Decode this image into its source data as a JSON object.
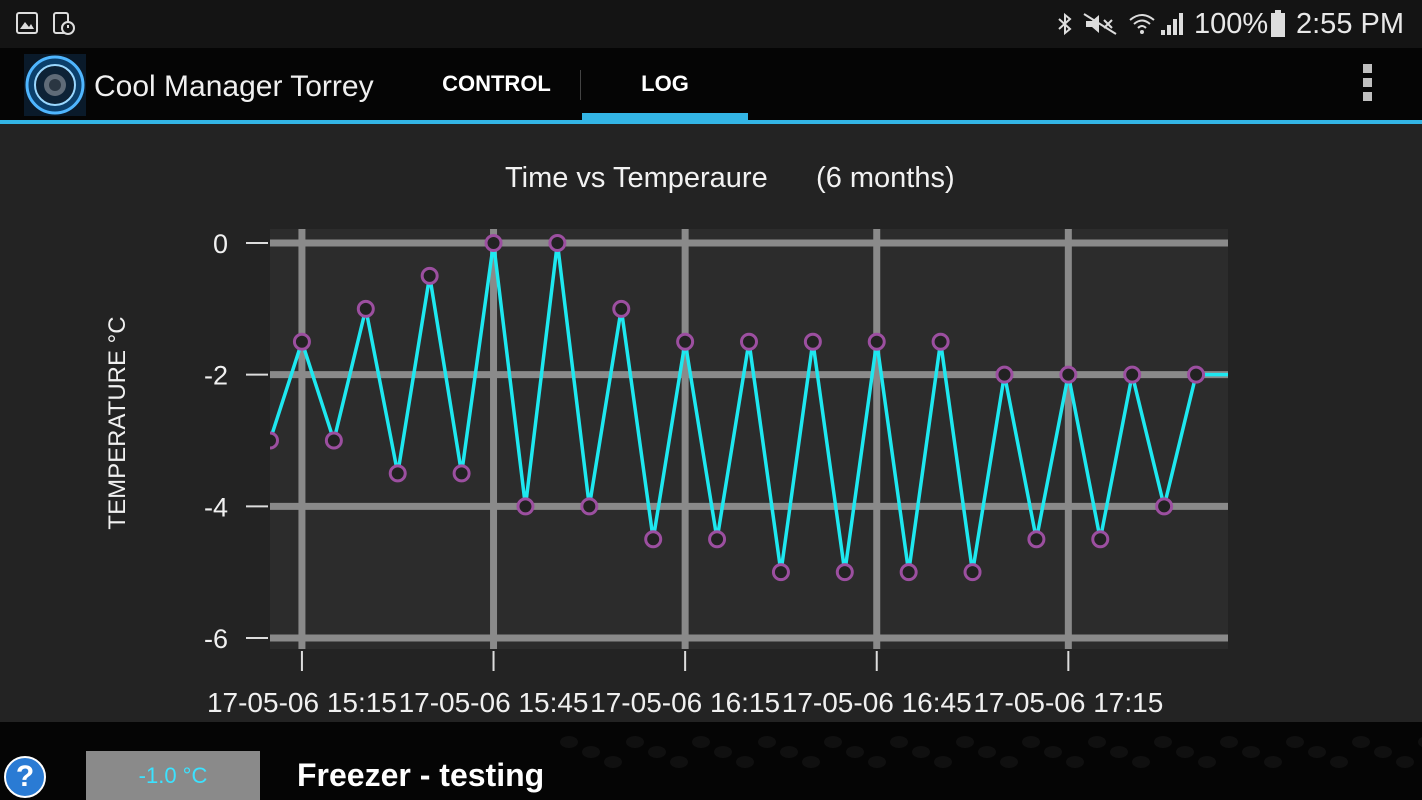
{
  "status_bar": {
    "left_icons": [
      "gallery-icon",
      "clock-file-icon"
    ],
    "right_icons": [
      "bluetooth-icon",
      "mute-icon",
      "wifi-icon",
      "signal-icon",
      "battery-icon"
    ],
    "battery": "100%",
    "time": "2:55 PM"
  },
  "action_bar": {
    "app_title": "Cool Manager Torrey",
    "tabs": [
      {
        "label": "CONTROL",
        "selected": false
      },
      {
        "label": "LOG",
        "selected": true
      }
    ],
    "accent_color": "#33b5e5",
    "overflow_icon": "overflow-menu-icon"
  },
  "chart_data": {
    "type": "line",
    "title": "Time vs Temperaure",
    "subtitle": "(6 months)",
    "ylabel": "TEMPERATURE °C",
    "xlabel": "",
    "ylim": [
      -6,
      0
    ],
    "yticks": [
      "0",
      "-2",
      "-4",
      "-6"
    ],
    "xticks": [
      "17-05-06 15:15",
      "17-05-06 15:45",
      "17-05-06 16:15",
      "17-05-06 16:45",
      "17-05-06 17:15"
    ],
    "grid": true,
    "line_color": "#1ee8f0",
    "marker_color": "#9c4fa0",
    "series": [
      {
        "values": [
          -3,
          -1.5,
          -3,
          -1,
          -3.5,
          -0.5,
          -3.5,
          0,
          -4,
          0,
          -4,
          -1,
          -4.5,
          -1.5,
          -4.5,
          -1.5,
          -5,
          -1.5,
          -5,
          -1.5,
          -5,
          -1.5,
          -5,
          -2,
          -4.5,
          -2,
          -4.5,
          -2,
          -4,
          -2,
          -2
        ]
      }
    ]
  },
  "bottom_bar": {
    "help_label": "?",
    "temperature": "-1.0 °C",
    "device_name": "Freezer - testing"
  }
}
